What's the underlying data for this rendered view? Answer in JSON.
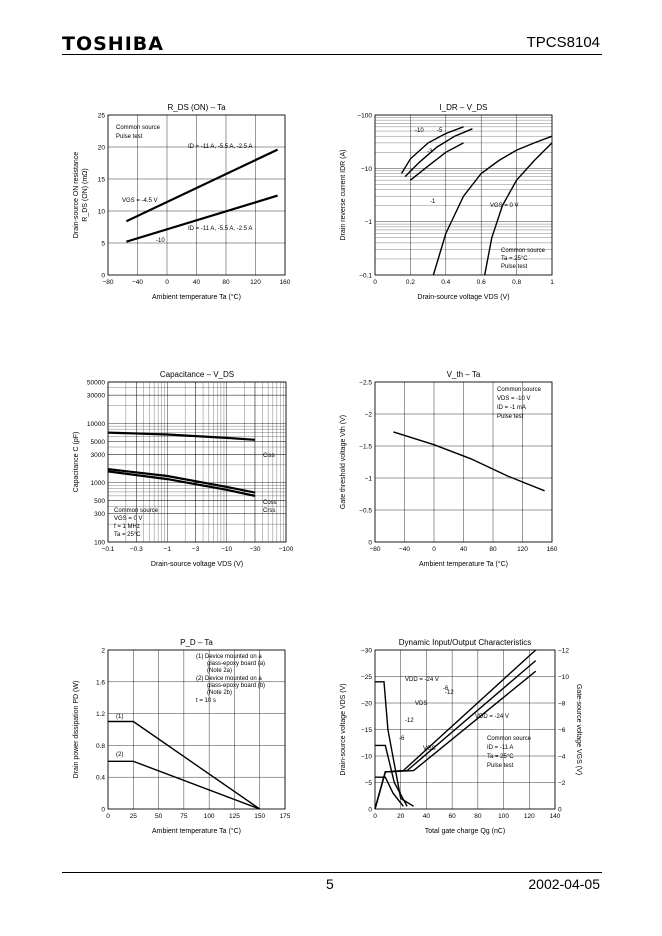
{
  "header": {
    "logo": "TOSHIBA",
    "part_number": "TPCS8104"
  },
  "footer": {
    "page": "5",
    "date": "2002-04-05"
  },
  "chart_data": [
    {
      "id": "rds-ta",
      "type": "line",
      "title": "R_DS (ON) – Ta",
      "title_main": "R",
      "title_sub": "DS (ON)",
      "title_tail": " – Ta",
      "xlabel": "Ambient temperature    Ta    (°C)",
      "ylabel": "Drain-source ON resistance",
      "ylabel2": "R_DS (ON)   (mΩ)",
      "xlim": [
        -80,
        160
      ],
      "ylim": [
        0,
        25
      ],
      "x_ticks": [
        -80,
        -40,
        0,
        40,
        80,
        120,
        160
      ],
      "y_ticks": [
        0,
        5,
        10,
        15,
        20,
        25
      ],
      "series": [
        {
          "name": "VGS = -4.5 V",
          "x": [
            -55,
            150
          ],
          "y": [
            8.4,
            19.6
          ]
        },
        {
          "name": "VGS = -10 V",
          "x": [
            -55,
            150
          ],
          "y": [
            5.2,
            12.4
          ]
        }
      ],
      "annotations": [
        "Common source",
        "Pulse test",
        "ID = -11 A, -5.5 A, -2.5 A",
        "VGS = -4.5 V",
        "ID = -11 A, -5.5 A, -2.5 A",
        "-10"
      ]
    },
    {
      "id": "idr-vds",
      "type": "line",
      "title": "I_DR – V_DS",
      "xlabel": "Drain-source voltage    VDS    (V)",
      "ylabel": "Drain reverse current    IDR    (A)",
      "xscale": "linear",
      "yscale": "log",
      "xlim": [
        0,
        1
      ],
      "ylim": [
        -0.1,
        -100
      ],
      "x_ticks": [
        0,
        0.2,
        0.4,
        0.6,
        0.8,
        1
      ],
      "y_ticks": [
        -0.1,
        -1,
        -10,
        -100
      ],
      "series": [
        {
          "name": "VGS = -10",
          "x": [
            0.15,
            0.2,
            0.3,
            0.4,
            0.5
          ],
          "y": [
            -8,
            -15,
            -30,
            -45,
            -60
          ]
        },
        {
          "name": "VGS = -5",
          "x": [
            0.17,
            0.25,
            0.35,
            0.45,
            0.55
          ],
          "y": [
            -7,
            -13,
            -25,
            -40,
            -55
          ]
        },
        {
          "name": "VGS = -3",
          "x": [
            0.2,
            0.3,
            0.4,
            0.5
          ],
          "y": [
            -6,
            -11,
            -20,
            -30
          ]
        },
        {
          "name": "VGS = -1",
          "x": [
            0.33,
            0.4,
            0.5,
            0.6,
            0.7,
            0.8,
            0.9,
            1.0
          ],
          "y": [
            -0.1,
            -0.6,
            -3,
            -8,
            -14,
            -22,
            -30,
            -40
          ]
        },
        {
          "name": "VGS = 0 V",
          "x": [
            0.62,
            0.66,
            0.72,
            0.8,
            0.9,
            1.0
          ],
          "y": [
            -0.1,
            -0.5,
            -2,
            -6,
            -14,
            -30
          ]
        }
      ],
      "annotations": [
        "-10",
        "-5",
        "-3",
        "-1",
        "VGS = 0 V",
        "Common source",
        "Ta = 25°C",
        "Pulse test"
      ]
    },
    {
      "id": "cap-vds",
      "type": "line",
      "title": "Capacitance – V_DS",
      "xlabel": "Drain-source voltage    VDS    (V)",
      "ylabel": "Capacitance    C    (pF)",
      "xscale": "log",
      "yscale": "log",
      "xlim": [
        -0.1,
        -100
      ],
      "ylim": [
        100,
        50000
      ],
      "x_ticks": [
        -0.1,
        -0.3,
        -1,
        -3,
        -10,
        -30,
        -100
      ],
      "y_ticks": [
        100,
        300,
        500,
        1000,
        3000,
        5000,
        10000,
        30000,
        50000
      ],
      "series": [
        {
          "name": "Ciss",
          "x": [
            -0.1,
            -1,
            -10,
            -30
          ],
          "y": [
            7000,
            6500,
            5700,
            5300
          ]
        },
        {
          "name": "Coss",
          "x": [
            -0.1,
            -1,
            -10,
            -30
          ],
          "y": [
            1700,
            1300,
            850,
            680
          ]
        },
        {
          "name": "Crss",
          "x": [
            -0.1,
            -1,
            -10,
            -30
          ],
          "y": [
            1550,
            1150,
            760,
            600
          ]
        }
      ],
      "annotations": [
        "Ciss",
        "Coss",
        "Crss",
        "Common source",
        "VGS = 0 V",
        "f = 1 MHz",
        "Ta = 25°C"
      ]
    },
    {
      "id": "vth-ta",
      "type": "line",
      "title": "V_th – Ta",
      "xlabel": "Ambient temperature    Ta    (°C)",
      "ylabel": "Gate threshold voltage    Vth    (V)",
      "xlim": [
        -80,
        160
      ],
      "ylim": [
        0,
        -2.5
      ],
      "x_ticks": [
        -80,
        -40,
        0,
        40,
        80,
        120,
        160
      ],
      "y_ticks": [
        0,
        -0.5,
        -1,
        -1.5,
        -2,
        -2.5
      ],
      "series": [
        {
          "name": "Vth",
          "x": [
            -55,
            0,
            50,
            100,
            150
          ],
          "y": [
            -1.72,
            -1.52,
            -1.3,
            -1.03,
            -0.8
          ]
        }
      ],
      "annotations": [
        "Common source",
        "VDS = -10 V",
        "ID = -1 mA",
        "Pulse test"
      ]
    },
    {
      "id": "pd-ta",
      "type": "line",
      "title": "P_D – Ta",
      "xlabel": "Ambient temperature    Ta    (°C)",
      "ylabel": "Drain power dissipation    PD    (W)",
      "xlim": [
        0,
        175
      ],
      "ylim": [
        0,
        2.0
      ],
      "x_ticks": [
        0,
        25,
        50,
        75,
        100,
        125,
        150,
        175
      ],
      "y_ticks": [
        0,
        0.4,
        0.8,
        1.2,
        1.6,
        2.0
      ],
      "series": [
        {
          "name": "(1)",
          "x": [
            0,
            25,
            150
          ],
          "y": [
            1.1,
            1.1,
            0
          ]
        },
        {
          "name": "(2)",
          "x": [
            0,
            25,
            150
          ],
          "y": [
            0.6,
            0.6,
            0
          ]
        }
      ],
      "annotations": [
        "(1)  Device mounted on a",
        "glass-epoxy board (a)",
        "(Note 2a)",
        "(2)  Device mounted on a",
        "glass-epoxy board (b)",
        "(Note 2b)",
        "t = 10 s",
        "(1)",
        "(2)"
      ]
    },
    {
      "id": "dyn-io",
      "type": "line",
      "title": "Dynamic Input/Output Characteristics",
      "xlabel": "Total gate charge    Qg    (nC)",
      "ylabel": "Drain-source voltage    VDS    (V)",
      "ylabel_right": "Gate-source voltage    VGS    (V)",
      "xlim": [
        0,
        140
      ],
      "ylim": [
        0,
        -30
      ],
      "ylim_right": [
        0,
        -12
      ],
      "x_ticks": [
        0,
        20,
        40,
        60,
        80,
        100,
        120,
        140
      ],
      "y_ticks": [
        0,
        -5,
        -10,
        -15,
        -20,
        -25,
        -30
      ],
      "y_ticks_right": [
        0,
        -2,
        -4,
        -6,
        -8,
        -10,
        -12
      ],
      "series": [
        {
          "name": "VDS (VDD=-24V)",
          "x": [
            0,
            7,
            10,
            20,
            30
          ],
          "y": [
            -24,
            -24,
            -15,
            -2,
            -0.5
          ]
        },
        {
          "name": "VDS (VDD=-12V)",
          "x": [
            0,
            8,
            15,
            25
          ],
          "y": [
            -12,
            -12,
            -5,
            -0.5
          ]
        },
        {
          "name": "VDS (VDD=-6V)",
          "x": [
            0,
            8,
            14,
            22
          ],
          "y": [
            -6,
            -6,
            -3,
            -0.5
          ]
        },
        {
          "name": "VGS (VDD=-6V)",
          "x": [
            0,
            8,
            22,
            125
          ],
          "y": [
            0,
            -2.8,
            -2.9,
            -12
          ]
        },
        {
          "name": "VGS (VDD=-12V)",
          "x": [
            0,
            8,
            25,
            125
          ],
          "y": [
            0,
            -2.8,
            -2.9,
            -11.2
          ]
        },
        {
          "name": "VGS (VDD=-24V)",
          "x": [
            0,
            8,
            30,
            125
          ],
          "y": [
            0,
            -2.8,
            -2.9,
            -10.4
          ]
        }
      ],
      "annotations": [
        "VDD = -24 V",
        "-12",
        "-6",
        "VDS",
        "-12",
        "-6",
        "VGS",
        "VDD = -24 V",
        "Common source",
        "ID = -11 A",
        "Ta = 25°C",
        "Pulse test"
      ]
    }
  ]
}
